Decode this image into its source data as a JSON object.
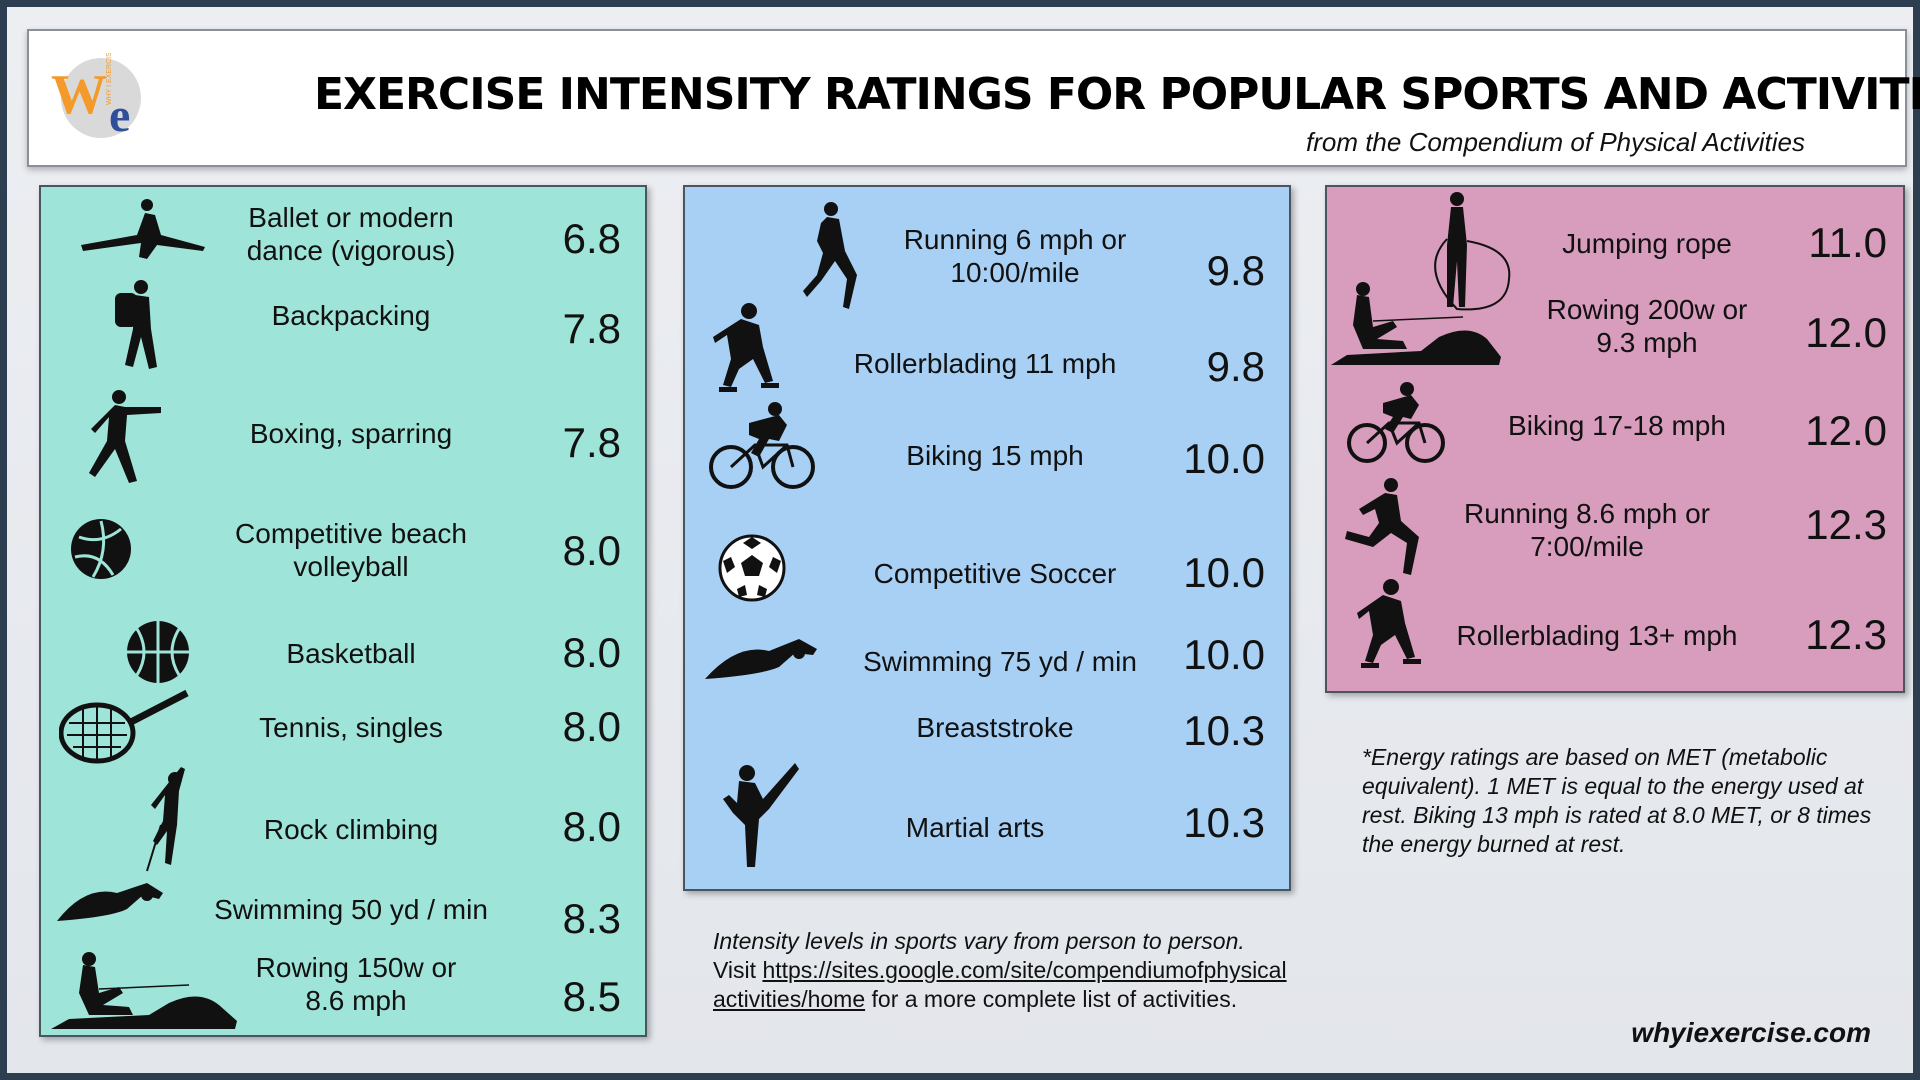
{
  "header": {
    "title": "EXERCISE INTENSITY RATINGS FOR POPULAR SPORTS AND ACTIVITIES",
    "subtitle": "from the Compendium of Physical Activities",
    "logo_letters": "We",
    "logo_small": "WHY I EXERCISE"
  },
  "colors": {
    "green_panel": "#9fe4d8",
    "blue_panel": "#a7d0f4",
    "pink_panel": "#d89cbc",
    "logo_w": "#f39a2b",
    "logo_e": "#2f4f9a"
  },
  "green": [
    {
      "label": "Ballet or modern dance (vigorous)",
      "value": "6.8",
      "icon": "dancer-icon"
    },
    {
      "label": "Backpacking",
      "value": "7.8",
      "icon": "backpacker-icon"
    },
    {
      "label": "Boxing, sparring",
      "value": "7.8",
      "icon": "boxer-icon"
    },
    {
      "label": "Competitive beach volleyball",
      "value": "8.0",
      "icon": "volleyball-icon"
    },
    {
      "label": "Basketball",
      "value": "8.0",
      "icon": "basketball-icon"
    },
    {
      "label": "Tennis, singles",
      "value": "8.0",
      "icon": "tennis-racket-icon"
    },
    {
      "label": "Rock climbing",
      "value": "8.0",
      "icon": "climber-icon"
    },
    {
      "label": "Swimming 50 yd / min",
      "value": "8.3",
      "icon": "swimmer-icon"
    },
    {
      "label": "Rowing 150w or 8.6 mph",
      "value": "8.5",
      "icon": "rower-icon"
    }
  ],
  "blue": [
    {
      "label": "Running 6 mph or 10:00/mile",
      "value": "9.8",
      "icon": "runner-icon"
    },
    {
      "label": "Rollerblading 11 mph",
      "value": "9.8",
      "icon": "rollerblader-icon"
    },
    {
      "label": "Biking 15 mph",
      "value": "10.0",
      "icon": "cyclist-icon"
    },
    {
      "label": "Competitive Soccer",
      "value": "10.0",
      "icon": "soccer-ball-icon"
    },
    {
      "label": "Swimming 75 yd / min",
      "value": "10.0",
      "icon": "swimmer-icon"
    },
    {
      "label": "Breaststroke",
      "value": "10.3",
      "icon": ""
    },
    {
      "label": "Martial arts",
      "value": "10.3",
      "icon": "martial-artist-icon"
    }
  ],
  "pink": [
    {
      "label": "Jumping rope",
      "value": "11.0",
      "icon": "jump-rope-icon"
    },
    {
      "label": "Rowing 200w or 9.3 mph",
      "value": "12.0",
      "icon": "rower-icon"
    },
    {
      "label": "Biking 17-18 mph",
      "value": "12.0",
      "icon": "cyclist-icon"
    },
    {
      "label": "Running 8.6 mph or 7:00/mile",
      "value": "12.3",
      "icon": "runner-icon"
    },
    {
      "label": "Rollerblading 13+ mph",
      "value": "12.3",
      "icon": "rollerblader-icon"
    }
  ],
  "note": "*Energy ratings are based on MET (metabolic equivalent). 1 MET is equal to the energy used at rest.  Biking 13 mph is rated at 8.0 MET, or 8 times the energy burned at rest.",
  "footer": {
    "intro": "Intensity levels in sports vary from person to person.",
    "visit": "Visit ",
    "link": "https://sites.google.com/site/compendiumofphysicalactivities/home",
    "rest": " for a more complete list of activities."
  },
  "site": "whyiexercise.com"
}
